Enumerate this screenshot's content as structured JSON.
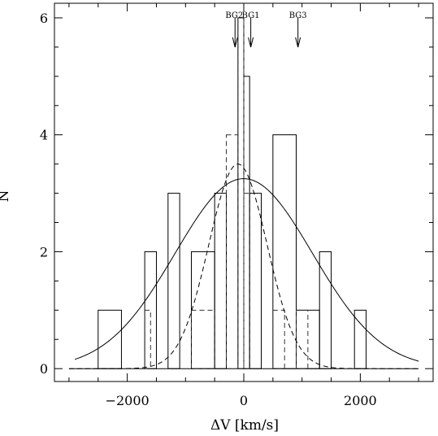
{
  "chart_data": {
    "type": "histogram",
    "xlabel": "ΔV [km/s]",
    "ylabel": "N",
    "xlim": [
      -3250,
      3250
    ],
    "ylim": [
      -0.22,
      6.25
    ],
    "xticks": [
      -2000,
      0,
      2000
    ],
    "xtick_labels": [
      "−2000",
      "0",
      "2000"
    ],
    "yticks": [
      0,
      2,
      4,
      6
    ],
    "ytick_labels": [
      "0",
      "2",
      "4",
      "6"
    ],
    "grid": false,
    "series": [
      {
        "style": "solid",
        "kind": "histogram",
        "bins": [
          [
            -2500,
            -2100,
            1
          ],
          [
            -1700,
            -1500,
            2
          ],
          [
            -1300,
            -1100,
            3
          ],
          [
            -900,
            -500,
            2
          ],
          [
            -500,
            -300,
            3
          ],
          [
            -100,
            0,
            6
          ],
          [
            0,
            100,
            5
          ],
          [
            100,
            300,
            3
          ],
          [
            500,
            900,
            4
          ],
          [
            900,
            1300,
            1
          ],
          [
            1300,
            1500,
            2
          ],
          [
            1900,
            2100,
            1
          ]
        ]
      },
      {
        "style": "dashed",
        "kind": "histogram",
        "bins": [
          [
            -1700,
            -1600,
            1
          ],
          [
            -900,
            -500,
            1
          ],
          [
            -300,
            -100,
            4
          ],
          [
            -100,
            0,
            6
          ],
          [
            0,
            100,
            3
          ],
          [
            500,
            700,
            1
          ],
          [
            900,
            1100,
            1
          ]
        ]
      },
      {
        "style": "solid",
        "kind": "gaussian",
        "mean": 0,
        "sigma": 1180,
        "amplitude": 3.25,
        "range": [
          -2900,
          3000
        ]
      },
      {
        "style": "dashed",
        "kind": "gaussian",
        "mean": -100,
        "sigma": 500,
        "amplitude": 3.5,
        "range": [
          -3000,
          3000
        ]
      }
    ],
    "annotations": [
      {
        "label": "BG2",
        "x": -150,
        "text_anchor": "end"
      },
      {
        "label": "BG1",
        "x": 120,
        "text_anchor": "middle"
      },
      {
        "label": "BG3",
        "x": 930,
        "text_anchor": "middle"
      }
    ]
  }
}
